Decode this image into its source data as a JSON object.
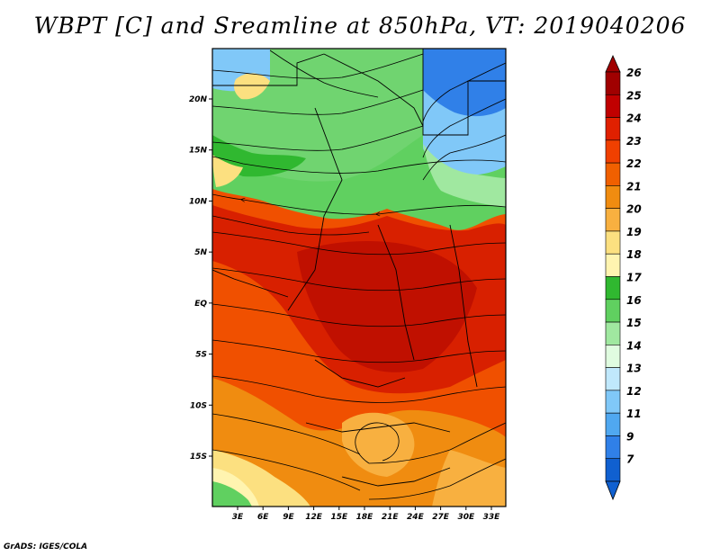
{
  "title": "WBPT [C] and Sreamline at 850hPa, VT: 2019040206",
  "credit": "GrADS: IGES/COLA",
  "axes": {
    "lat_ticks": [
      {
        "value": 20,
        "label": "20N"
      },
      {
        "value": 15,
        "label": "15N"
      },
      {
        "value": 10,
        "label": "10N"
      },
      {
        "value": 5,
        "label": "5N"
      },
      {
        "value": 0,
        "label": "EQ"
      },
      {
        "value": -5,
        "label": "5S"
      },
      {
        "value": -10,
        "label": "10S"
      },
      {
        "value": -15,
        "label": "15S"
      }
    ],
    "lon_ticks": [
      {
        "value": 3,
        "label": "3E"
      },
      {
        "value": 6,
        "label": "6E"
      },
      {
        "value": 9,
        "label": "9E"
      },
      {
        "value": 12,
        "label": "12E"
      },
      {
        "value": 15,
        "label": "15E"
      },
      {
        "value": 18,
        "label": "18E"
      },
      {
        "value": 21,
        "label": "21E"
      },
      {
        "value": 24,
        "label": "24E"
      },
      {
        "value": 27,
        "label": "27E"
      },
      {
        "value": 30,
        "label": "30E"
      },
      {
        "value": 33,
        "label": "33E"
      }
    ],
    "lon_range": [
      0,
      35
    ],
    "lat_range": [
      -20,
      25
    ]
  },
  "colorbar": {
    "levels": [
      {
        "label": "26",
        "color": "#a00000"
      },
      {
        "label": "25",
        "color": "#c00000"
      },
      {
        "label": "24",
        "color": "#e02000"
      },
      {
        "label": "23",
        "color": "#f04000"
      },
      {
        "label": "22",
        "color": "#f06000"
      },
      {
        "label": "21",
        "color": "#f08c10"
      },
      {
        "label": "20",
        "color": "#f8b040"
      },
      {
        "label": "19",
        "color": "#fce080"
      },
      {
        "label": "18",
        "color": "#fff4b0"
      },
      {
        "label": "17",
        "color": "#30b830"
      },
      {
        "label": "16",
        "color": "#60d060"
      },
      {
        "label": "15",
        "color": "#a0e8a0"
      },
      {
        "label": "14",
        "color": "#e0fce0"
      },
      {
        "label": "13",
        "color": "#c0e8fc"
      },
      {
        "label": "12",
        "color": "#80c8f8"
      },
      {
        "label": "11",
        "color": "#50a8f0"
      },
      {
        "label": "9",
        "color": "#3080e8"
      },
      {
        "label": "7",
        "color": "#1060d0"
      }
    ],
    "top_color": "#a00000",
    "bottom_color": "#1060d0"
  }
}
